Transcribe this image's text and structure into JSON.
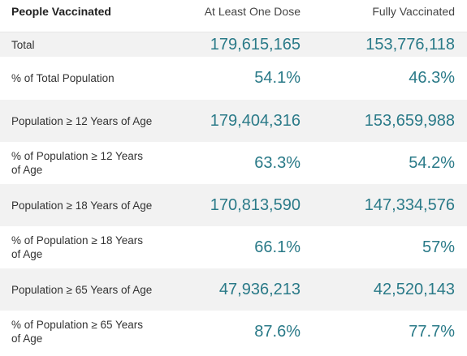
{
  "header": {
    "title": "People Vaccinated",
    "col1": "At Least One Dose",
    "col2": "Fully Vaccinated"
  },
  "rows": [
    {
      "label": "Total",
      "one_dose": "179,615,165",
      "fully": "153,776,118"
    },
    {
      "label": "% of Total Population",
      "one_dose": "54.1%",
      "fully": "46.3%"
    },
    {
      "label": "Population ≥ 12 Years of Age",
      "one_dose": "179,404,316",
      "fully": "153,659,988"
    },
    {
      "label": "% of Population ≥ 12 Years of Age",
      "one_dose": "63.3%",
      "fully": "54.2%"
    },
    {
      "label": "Population ≥ 18 Years of Age",
      "one_dose": "170,813,590",
      "fully": "147,334,576"
    },
    {
      "label": "% of Population ≥ 18 Years of Age",
      "one_dose": "66.1%",
      "fully": "57%"
    },
    {
      "label": "Population ≥ 65 Years of Age",
      "one_dose": "47,936,213",
      "fully": "42,520,143"
    },
    {
      "label": "% of Population ≥ 65 Years of Age",
      "one_dose": "87.6%",
      "fully": "77.7%"
    }
  ],
  "colors": {
    "value_text": "#2a7a88",
    "shaded_row": "#f2f2f2"
  }
}
